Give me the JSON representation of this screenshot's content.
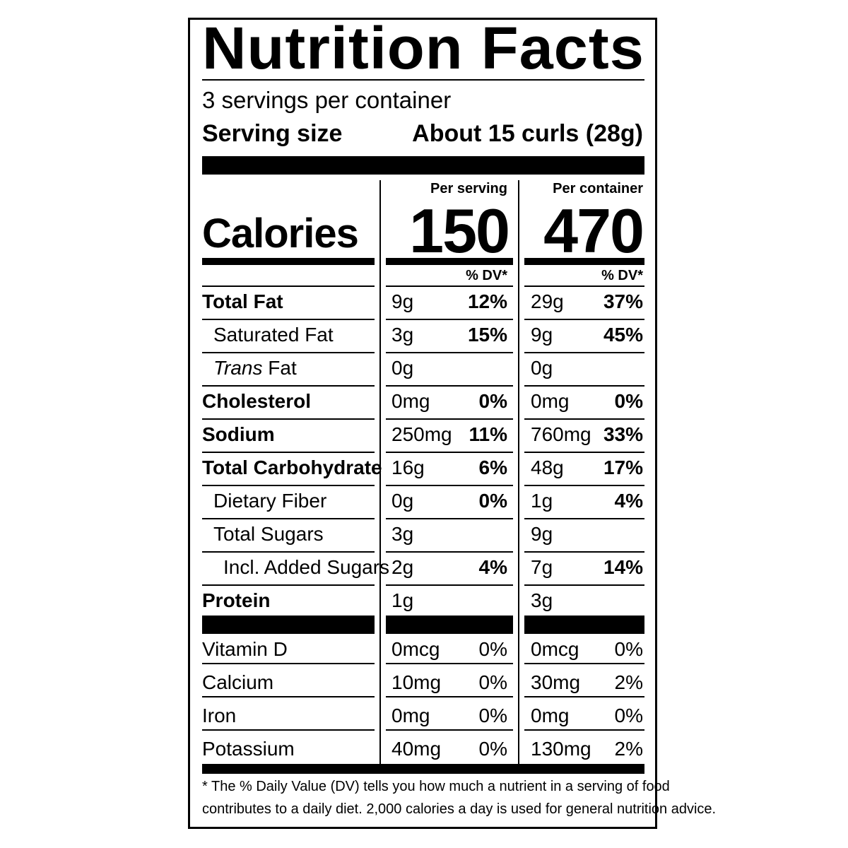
{
  "title": "Nutrition Facts",
  "servings_per_container": "3 servings per container",
  "serving_size_label": "Serving size",
  "serving_size_value": "About 15 curls (28g)",
  "per_serving_label": "Per serving",
  "per_container_label": "Per container",
  "calories_label": "Calories",
  "calories_per_serving": "150",
  "calories_per_container": "470",
  "dv_header": "% DV*",
  "nutrients": [
    {
      "name": "Total Fat",
      "serving_amount": "9g",
      "serving_dv": "12%",
      "container_amount": "29g",
      "container_dv": "37%"
    },
    {
      "name": "Saturated Fat",
      "serving_amount": "3g",
      "serving_dv": "15%",
      "container_amount": "9g",
      "container_dv": "45%"
    },
    {
      "name_italic": "Trans",
      "name": " Fat",
      "serving_amount": "0g",
      "serving_dv": "",
      "container_amount": "0g",
      "container_dv": ""
    },
    {
      "name": "Cholesterol",
      "serving_amount": "0mg",
      "serving_dv": "0%",
      "container_amount": "0mg",
      "container_dv": "0%"
    },
    {
      "name": "Sodium",
      "serving_amount": "250mg",
      "serving_dv": "11%",
      "container_amount": "760mg",
      "container_dv": "33%"
    },
    {
      "name": "Total Carbohydrate",
      "serving_amount": "16g",
      "serving_dv": "6%",
      "container_amount": "48g",
      "container_dv": "17%"
    },
    {
      "name": "Dietary Fiber",
      "serving_amount": "0g",
      "serving_dv": "0%",
      "container_amount": "1g",
      "container_dv": "4%"
    },
    {
      "name": "Total Sugars",
      "serving_amount": "3g",
      "serving_dv": "",
      "container_amount": "9g",
      "container_dv": ""
    },
    {
      "name": "Incl. Added Sugars",
      "serving_amount": "2g",
      "serving_dv": "4%",
      "container_amount": "7g",
      "container_dv": "14%"
    },
    {
      "name": "Protein",
      "serving_amount": "1g",
      "serving_dv": "",
      "container_amount": "3g",
      "container_dv": ""
    }
  ],
  "vitamins": [
    {
      "name": "Vitamin D",
      "serving_amount": "0mcg",
      "serving_dv": "0%",
      "container_amount": "0mcg",
      "container_dv": "0%"
    },
    {
      "name": "Calcium",
      "serving_amount": "10mg",
      "serving_dv": "0%",
      "container_amount": "30mg",
      "container_dv": "2%"
    },
    {
      "name": "Iron",
      "serving_amount": "0mg",
      "serving_dv": "0%",
      "container_amount": "0mg",
      "container_dv": "0%"
    },
    {
      "name": "Potassium",
      "serving_amount": "40mg",
      "serving_dv": "0%",
      "container_amount": "130mg",
      "container_dv": "2%"
    }
  ],
  "footnote_line1": "* The % Daily Value (DV) tells you how much a nutrient in a serving of food",
  "footnote_line2": "contributes to a daily diet. 2,000 calories a day is used for general nutrition advice."
}
